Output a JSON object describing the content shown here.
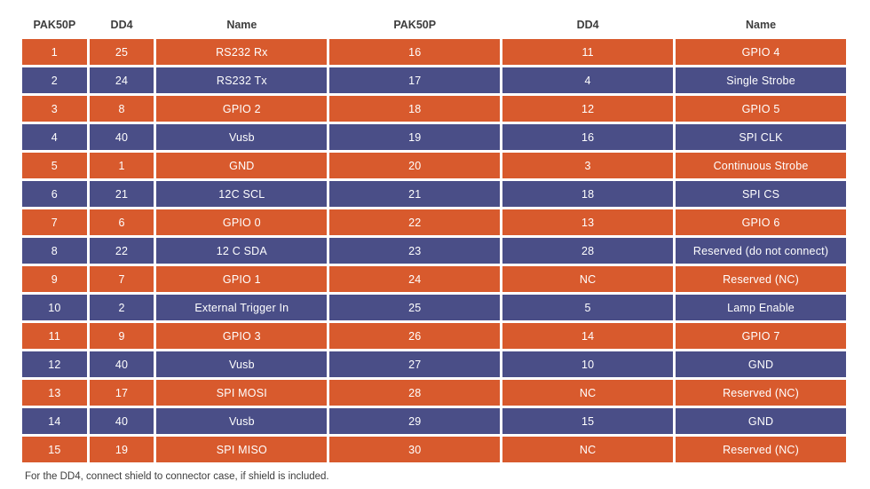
{
  "table": {
    "headers": [
      "PAK50P",
      "DD4",
      "Name",
      "PAK50P",
      "DD4",
      "Name"
    ],
    "rows": [
      [
        "1",
        "25",
        "RS232 Rx",
        "16",
        "11",
        "GPIO 4"
      ],
      [
        "2",
        "24",
        "RS232 Tx",
        "17",
        "4",
        "Single Strobe"
      ],
      [
        "3",
        "8",
        "GPIO 2",
        "18",
        "12",
        "GPIO 5"
      ],
      [
        "4",
        "40",
        "Vusb",
        "19",
        "16",
        "SPI CLK"
      ],
      [
        "5",
        "1",
        "GND",
        "20",
        "3",
        "Continuous Strobe"
      ],
      [
        "6",
        "21",
        "12C SCL",
        "21",
        "18",
        "SPI CS"
      ],
      [
        "7",
        "6",
        "GPIO 0",
        "22",
        "13",
        "GPIO 6"
      ],
      [
        "8",
        "22",
        "12 C SDA",
        "23",
        "28",
        "Reserved (do not connect)"
      ],
      [
        "9",
        "7",
        "GPIO 1",
        "24",
        "NC",
        "Reserved (NC)"
      ],
      [
        "10",
        "2",
        "External Trigger In",
        "25",
        "5",
        "Lamp Enable"
      ],
      [
        "11",
        "9",
        "GPIO 3",
        "26",
        "14",
        "GPIO 7"
      ],
      [
        "12",
        "40",
        "Vusb",
        "27",
        "10",
        "GND"
      ],
      [
        "13",
        "17",
        "SPI MOSI",
        "28",
        "NC",
        "Reserved (NC)"
      ],
      [
        "14",
        "40",
        "Vusb",
        "29",
        "15",
        "GND"
      ],
      [
        "15",
        "19",
        "SPI MISO",
        "30",
        "NC",
        "Reserved (NC)"
      ]
    ]
  },
  "footer": {
    "note": "For the DD4, connect shield to connector case, if shield is included."
  },
  "colors": {
    "orange": "#d85a2d",
    "blue": "#4a4e87",
    "header_text": "#3d3d3d",
    "cell_text": "#ffffff",
    "background": "#ffffff"
  }
}
